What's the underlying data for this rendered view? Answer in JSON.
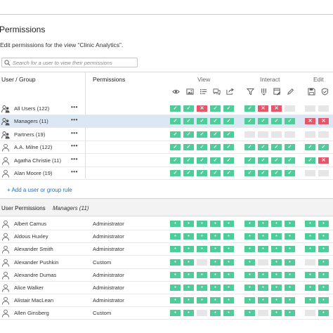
{
  "page": {
    "title": "Permissions",
    "subtitle": "Edit permissions for the view “Clinic Analytics”."
  },
  "search": {
    "placeholder": "Search for a user to view their permissions"
  },
  "table": {
    "col_user": "User / Group",
    "col_permissions": "Permissions",
    "groups": [
      {
        "label": "View",
        "icons": [
          "eye-icon",
          "image-icon",
          "list-filter-icon",
          "comment-icon",
          "share-icon"
        ]
      },
      {
        "label": "Interact",
        "icons": [
          "funnel-icon",
          "data-icon",
          "web-edit-icon",
          "pencil-icon"
        ]
      },
      {
        "label": "Edit",
        "icons": [
          "save-icon",
          "shield-icon"
        ]
      }
    ]
  },
  "rules": [
    {
      "name": "All Users (122)",
      "type": "group",
      "selected": false,
      "cells": [
        "g",
        "g",
        "r",
        "g",
        "g",
        "g",
        "r",
        "r",
        "e",
        "e",
        "e"
      ]
    },
    {
      "name": "Managers (11)",
      "type": "group",
      "selected": true,
      "cells": [
        "g",
        "g",
        "g",
        "g",
        "g",
        "g",
        "g",
        "g",
        "g",
        "r",
        "r"
      ]
    },
    {
      "name": "Partners (19)",
      "type": "group",
      "selected": false,
      "cells": [
        "g",
        "g",
        "g",
        "g",
        "g",
        "e",
        "e",
        "e",
        "e",
        "e",
        "e"
      ]
    },
    {
      "name": "A.A. Milne (122)",
      "type": "user",
      "selected": false,
      "cells": [
        "g",
        "g",
        "g",
        "g",
        "g",
        "g",
        "g",
        "g",
        "g",
        "g",
        "g"
      ]
    },
    {
      "name": "Agatha Christie (11)",
      "type": "user",
      "selected": false,
      "cells": [
        "g",
        "g",
        "g",
        "g",
        "g",
        "g",
        "g",
        "g",
        "g",
        "g",
        "r"
      ]
    },
    {
      "name": "Alan Moore (19)",
      "type": "user",
      "selected": false,
      "cells": [
        "g",
        "g",
        "g",
        "g",
        "g",
        "g",
        "g",
        "g",
        "g",
        "e",
        "e"
      ]
    }
  ],
  "add_rule": "+ Add a user or group rule",
  "user_permissions": {
    "title": "User Permissions",
    "subtitle": "Managers (11)",
    "users": [
      {
        "name": "Albert Camus",
        "role": "Administrator",
        "cells": [
          "g",
          "g",
          "g",
          "g",
          "g",
          "g",
          "g",
          "g",
          "g",
          "g",
          "g"
        ]
      },
      {
        "name": "Aldous Huxley",
        "role": "Administrator",
        "cells": [
          "g",
          "g",
          "g",
          "g",
          "g",
          "g",
          "g",
          "g",
          "g",
          "g",
          "g"
        ]
      },
      {
        "name": "Alexander Smith",
        "role": "Administrator",
        "cells": [
          "g",
          "g",
          "g",
          "g",
          "g",
          "g",
          "g",
          "g",
          "g",
          "g",
          "g"
        ]
      },
      {
        "name": "Alexander Pushkin",
        "role": "Custom",
        "cells": [
          "g",
          "g",
          "e",
          "g",
          "g",
          "g",
          "e",
          "g",
          "g",
          "e",
          "g"
        ]
      },
      {
        "name": "Alexandre Dumas",
        "role": "Administrator",
        "cells": [
          "g",
          "g",
          "g",
          "g",
          "g",
          "g",
          "g",
          "g",
          "g",
          "g",
          "g"
        ]
      },
      {
        "name": "Alice Walker",
        "role": "Administrator",
        "cells": [
          "g",
          "g",
          "g",
          "g",
          "g",
          "g",
          "g",
          "g",
          "g",
          "g",
          "g"
        ]
      },
      {
        "name": "Alistair MacLean",
        "role": "Administrator",
        "cells": [
          "g",
          "g",
          "g",
          "g",
          "g",
          "g",
          "g",
          "g",
          "g",
          "g",
          "g"
        ]
      },
      {
        "name": "Allen Ginsberg",
        "role": "Custom",
        "cells": [
          "g",
          "g",
          "e",
          "g",
          "g",
          "g",
          "e",
          "g",
          "g",
          "e",
          "g"
        ]
      }
    ]
  },
  "colors": {
    "allow": "#50cc9b",
    "deny": "#e5566a",
    "unset": "#e6e6e6",
    "selected_row": "#dbe7f3",
    "link": "#2c6fb6"
  },
  "marks": {
    "allow_rule": "✓",
    "deny_rule": "✕",
    "allow_user": "•"
  }
}
